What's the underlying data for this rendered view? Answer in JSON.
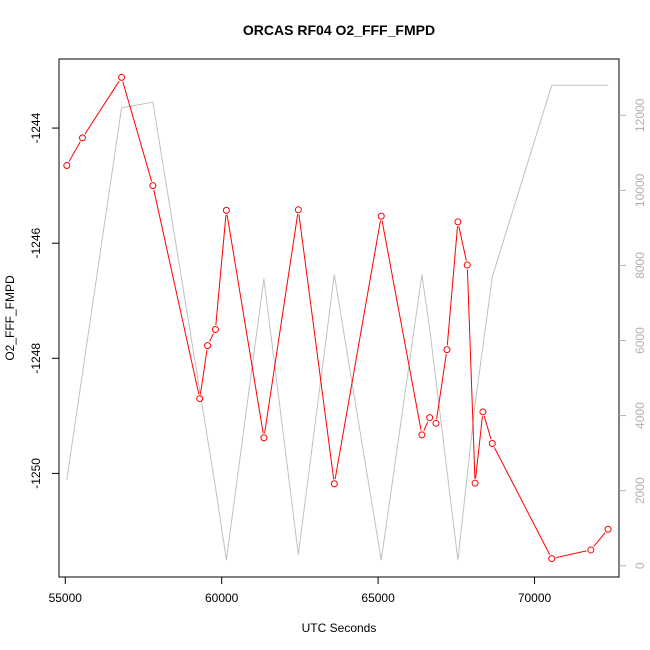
{
  "chart_data": {
    "type": "line",
    "title": "ORCAS RF04 O2_FFF_FMPD",
    "xlabel": "UTC Seconds",
    "ylabel": "O2_FFF_FMPD",
    "xlim": [
      54800,
      72700
    ],
    "ylim": [
      -1251.8,
      -1242.8
    ],
    "y2lim": [
      -300,
      13500
    ],
    "x_ticks": [
      55000,
      60000,
      65000,
      70000
    ],
    "y_ticks": [
      -1250,
      -1248,
      -1246,
      -1244
    ],
    "y2_ticks": [
      0,
      2000,
      4000,
      6000,
      8000,
      10000,
      12000
    ],
    "series": [
      {
        "color": "#ff0000",
        "axis": "left",
        "markers": "open-circle",
        "x": [
          55050,
          55550,
          56800,
          57800,
          59300,
          59550,
          59800,
          60150,
          61350,
          62450,
          63600,
          65100,
          66400,
          66650,
          66850,
          67200,
          67550,
          67850,
          68100,
          68350,
          68650,
          70550,
          71800,
          72350
        ],
        "y": [
          -1244.65,
          -1244.17,
          -1243.12,
          -1245.0,
          -1248.7,
          -1247.78,
          -1247.5,
          -1245.43,
          -1249.38,
          -1245.42,
          -1250.18,
          -1245.53,
          -1249.33,
          -1249.03,
          -1249.13,
          -1247.85,
          -1245.63,
          -1246.38,
          -1250.17,
          -1248.93,
          -1249.48,
          -1251.48,
          -1251.33,
          -1250.97
        ]
      },
      {
        "color": "#c0c0c0",
        "axis": "right",
        "markers": "none",
        "x": [
          55050,
          56800,
          57800,
          59800,
          60150,
          61350,
          62450,
          63600,
          65100,
          66400,
          66650,
          67550,
          68100,
          68650,
          70550,
          72350
        ],
        "y": [
          2300,
          12200,
          12350,
          2100,
          150,
          7650,
          300,
          7750,
          150,
          7750,
          6300,
          150,
          4300,
          7700,
          12800,
          12800
        ]
      }
    ]
  }
}
